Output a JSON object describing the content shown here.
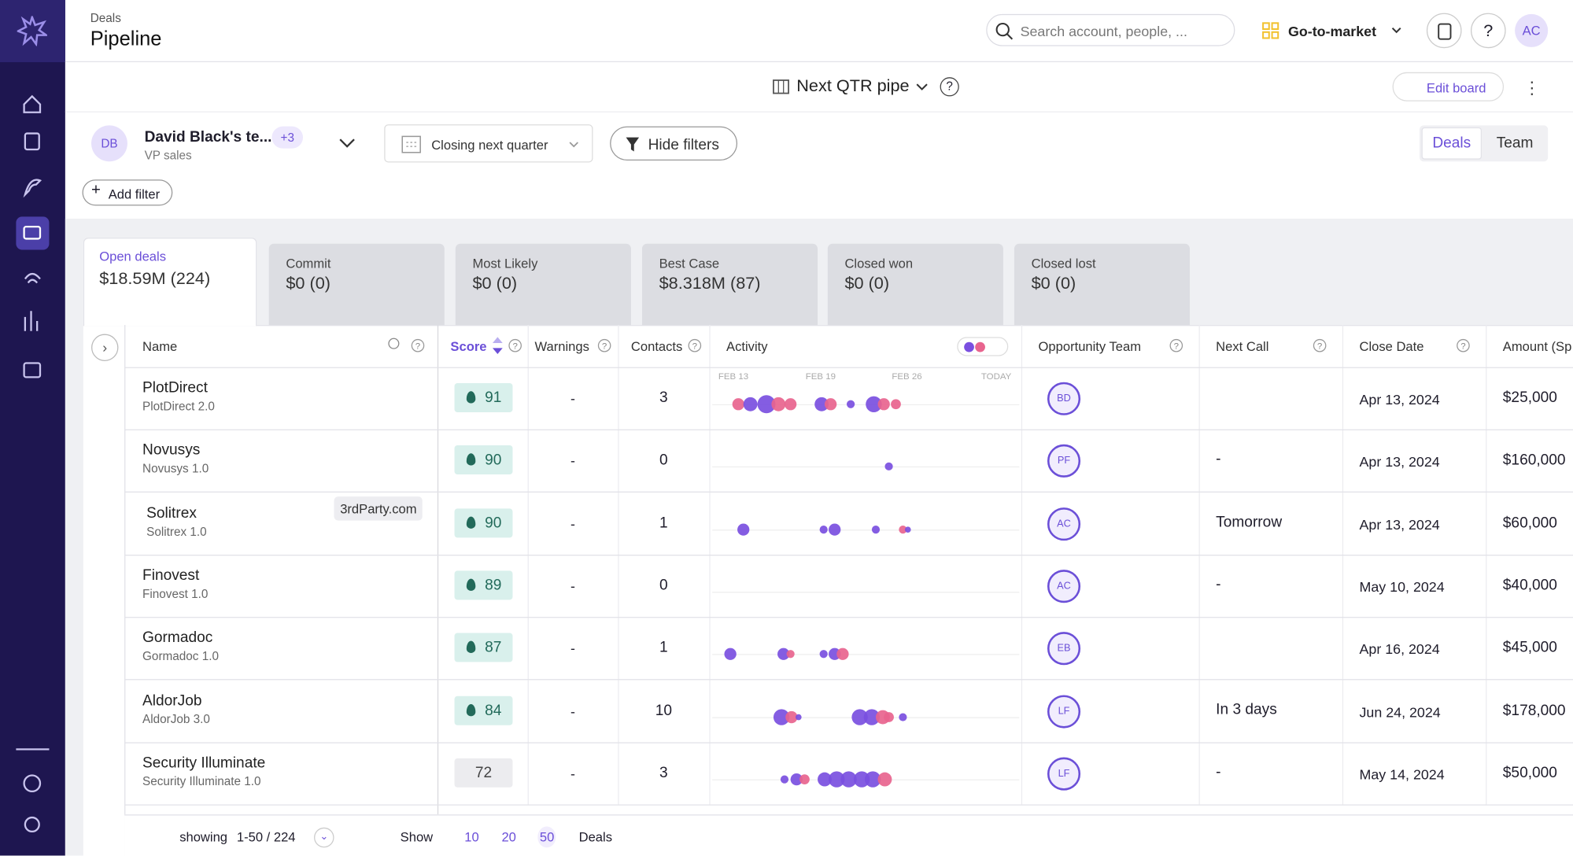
{
  "header": {
    "section": "Deals",
    "title": "Pipeline",
    "search_placeholder": "Search account, people, ...",
    "workspace": "Go-to-market",
    "avatar": "AC"
  },
  "board": {
    "name": "Next QTR pipe",
    "edit": "Edit board"
  },
  "owner": {
    "initials": "DB",
    "name": "David Black's te...",
    "extra": "+3",
    "role": "VP sales"
  },
  "filters": {
    "date": "Closing next quarter",
    "hide": "Hide filters",
    "add": "Add filter"
  },
  "view_toggle": [
    "Deals",
    "Team"
  ],
  "tabs": [
    {
      "label": "Open deals",
      "value": "$18.59M (224)"
    },
    {
      "label": "Commit",
      "value": "$0 (0)"
    },
    {
      "label": "Most Likely",
      "value": "$0 (0)"
    },
    {
      "label": "Best Case",
      "value": "$8.318M (87)"
    },
    {
      "label": "Closed won",
      "value": "$0 (0)"
    },
    {
      "label": "Closed lost",
      "value": "$0 (0)"
    }
  ],
  "columns": [
    "Name",
    "Score",
    "Warnings",
    "Contacts",
    "Activity",
    "Opportunity Team",
    "Next Call",
    "Close Date",
    "Amount (Sp"
  ],
  "activity_axis": [
    "FEB 13",
    "FEB 19",
    "FEB 26",
    "TODAY"
  ],
  "rows": [
    {
      "name": "PlotDirect",
      "product": "PlotDirect 2.0",
      "score": 91,
      "warnings": "-",
      "contacts": 3,
      "team": "BD",
      "next_call": null,
      "close_date": "Apr 13, 2024",
      "amount": "$25,000"
    },
    {
      "name": "Novusys",
      "product": "Novusys 1.0",
      "score": 90,
      "warnings": "-",
      "contacts": 0,
      "team": "PF",
      "next_call": "-",
      "close_date": "Apr 13, 2024",
      "amount": "$160,000"
    },
    {
      "name": "Solitrex",
      "product": "Solitrex 1.0",
      "tag": "3rdParty.com",
      "score": 90,
      "warnings": "-",
      "contacts": 1,
      "team": "AC",
      "next_call": "Tomorrow",
      "close_date": "Apr 13, 2024",
      "amount": "$60,000"
    },
    {
      "name": "Finovest",
      "product": "Finovest 1.0",
      "score": 89,
      "warnings": "-",
      "contacts": 0,
      "team": "AC",
      "next_call": "-",
      "close_date": "May 10, 2024",
      "amount": "$40,000"
    },
    {
      "name": "Gormadoc",
      "product": "Gormadoc 1.0",
      "score": 87,
      "warnings": "-",
      "contacts": 1,
      "team": "EB",
      "next_call": null,
      "close_date": "Apr 16, 2024",
      "amount": "$45,000"
    },
    {
      "name": "AldorJob",
      "product": "AldorJob 3.0",
      "score": 84,
      "warnings": "-",
      "contacts": 10,
      "team": "LF",
      "next_call": "In 3 days",
      "close_date": "Jun 24, 2024",
      "amount": "$178,000"
    },
    {
      "name": "Security Illuminate",
      "product": "Security Illuminate 1.0",
      "score": 72,
      "warnings": "-",
      "contacts": 3,
      "team": "LF",
      "next_call": "-",
      "close_date": "May 14, 2024",
      "amount": "$50,000"
    }
  ],
  "footer": {
    "showing": "showing",
    "range": "1-50 / 224",
    "show": "Show",
    "sizes": [
      10,
      20,
      50
    ],
    "unit": "Deals"
  }
}
